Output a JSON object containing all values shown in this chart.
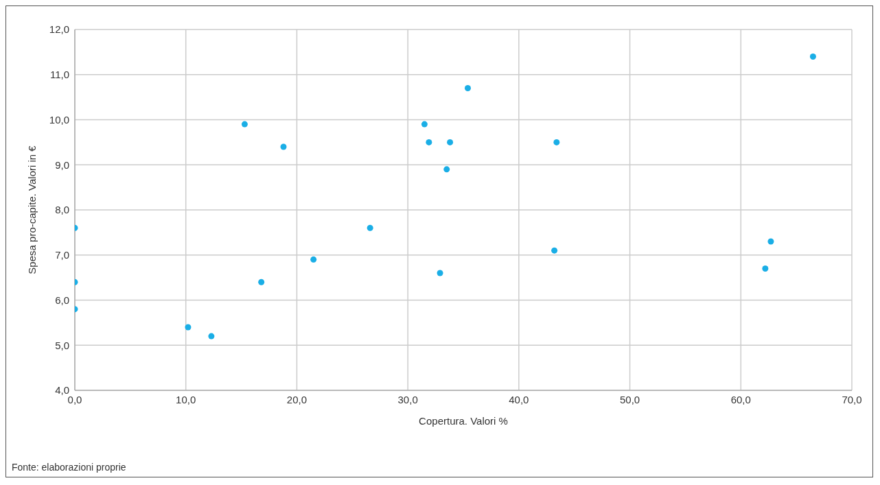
{
  "chart_data": {
    "type": "scatter",
    "xlabel": "Copertura. Valori %",
    "ylabel": "Spesa pro-capite. Valori in €",
    "annotations": [
      "Fonte: elaborazioni proprie"
    ],
    "x": [
      0,
      0,
      0,
      10.2,
      12.3,
      15.3,
      16.8,
      18.8,
      21.5,
      26.6,
      31.5,
      31.9,
      32.9,
      33.5,
      33.8,
      35.4,
      43.2,
      43.4,
      62.2,
      62.7,
      66.5
    ],
    "values": [
      7.6,
      6.4,
      5.8,
      5.4,
      5.2,
      9.9,
      6.4,
      9.4,
      6.9,
      7.6,
      9.9,
      9.5,
      6.6,
      8.9,
      9.5,
      10.7,
      7.1,
      9.5,
      6.7,
      7.3,
      11.4
    ],
    "color": "#1aaee6",
    "marker": "circle",
    "grid": true,
    "legend": false,
    "xlim": [
      0,
      70
    ],
    "xticks": [
      {
        "value": 0,
        "label": "0,0"
      },
      {
        "value": 10,
        "label": "10,0"
      },
      {
        "value": 20,
        "label": "20,0"
      },
      {
        "value": 30,
        "label": "30,0"
      },
      {
        "value": 40,
        "label": "40,0"
      },
      {
        "value": 50,
        "label": "50,0"
      },
      {
        "value": 60,
        "label": "60,0"
      },
      {
        "value": 70,
        "label": "70,0"
      }
    ],
    "ylim": [
      4,
      12
    ],
    "yticks": [
      {
        "value": 4,
        "label": "4,0"
      },
      {
        "value": 5,
        "label": "5,0"
      },
      {
        "value": 6,
        "label": "6,0"
      },
      {
        "value": 7,
        "label": "7,0"
      },
      {
        "value": 8,
        "label": "8,0"
      },
      {
        "value": 9,
        "label": "9,0"
      },
      {
        "value": 10,
        "label": "10,0"
      },
      {
        "value": 11,
        "label": "11,0"
      },
      {
        "value": 12,
        "label": "12,0"
      }
    ]
  }
}
